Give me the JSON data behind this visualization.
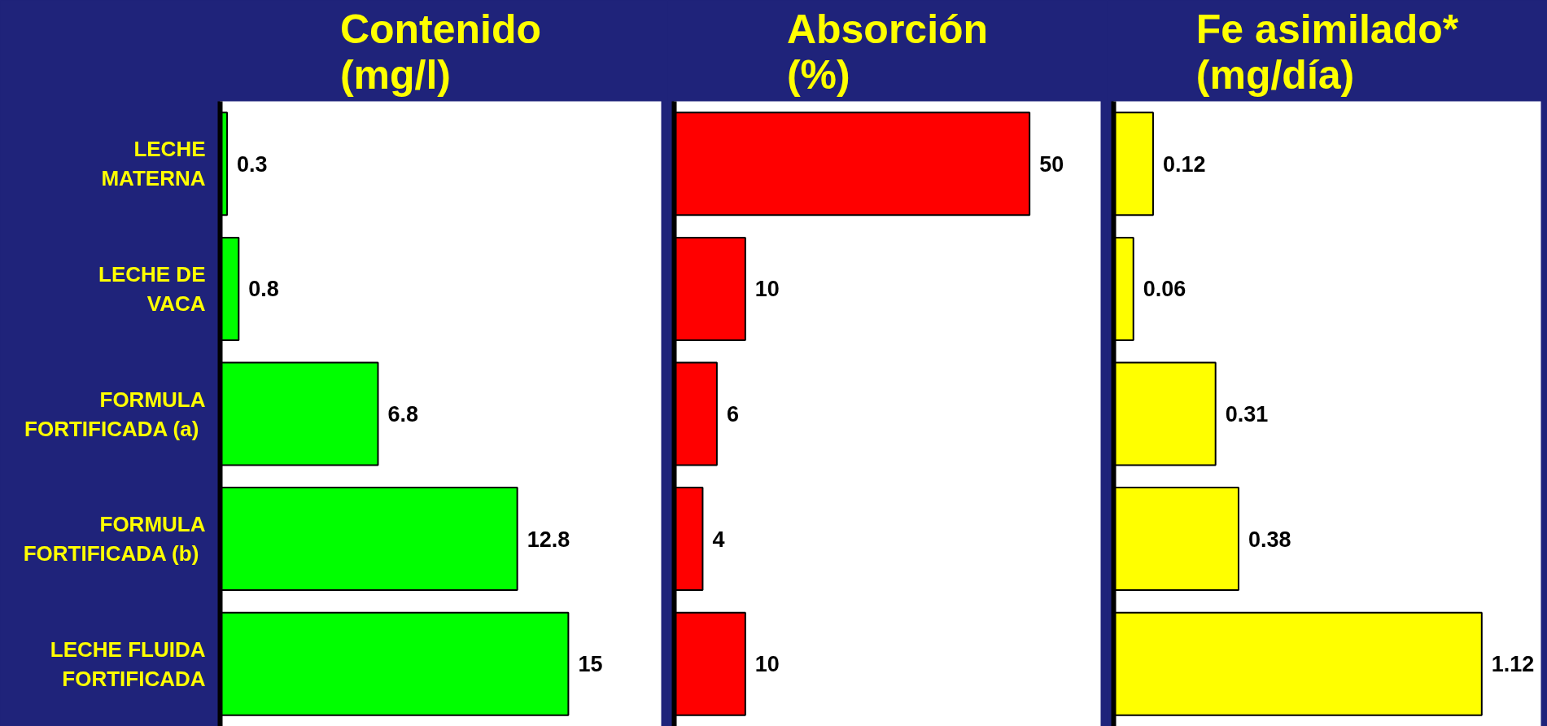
{
  "chart_data": [
    {
      "type": "bar",
      "orientation": "horizontal",
      "title": "Contenido\n(mg/l)",
      "categories": [
        "LECHE\nMATERNA",
        "LECHE DE\nVACA",
        "FORMULA\n FORTIFICADA (a)",
        "FORMULA\n FORTIFICADA (b)",
        "LECHE FLUIDA\nFORTIFICADA"
      ],
      "values": [
        0.3,
        0.8,
        6.8,
        12.8,
        15
      ],
      "color": "#00ff00",
      "xlim": [
        0,
        19
      ],
      "data_labels": true,
      "tick_labels": "y"
    },
    {
      "type": "bar",
      "orientation": "horizontal",
      "title": "Absorción\n(%)",
      "values": [
        50,
        10,
        6,
        4,
        10
      ],
      "color": "#ff0000",
      "xlim": [
        0,
        60
      ],
      "data_labels": true,
      "tick_labels": false
    },
    {
      "type": "bar",
      "orientation": "horizontal",
      "title": "Fe asimilado*\n(mg/día)",
      "values": [
        0.12,
        0.06,
        0.31,
        0.38,
        1.12
      ],
      "color": "#ffff00",
      "xlim": [
        0,
        1.3
      ],
      "data_labels": true,
      "tick_labels": false
    }
  ]
}
